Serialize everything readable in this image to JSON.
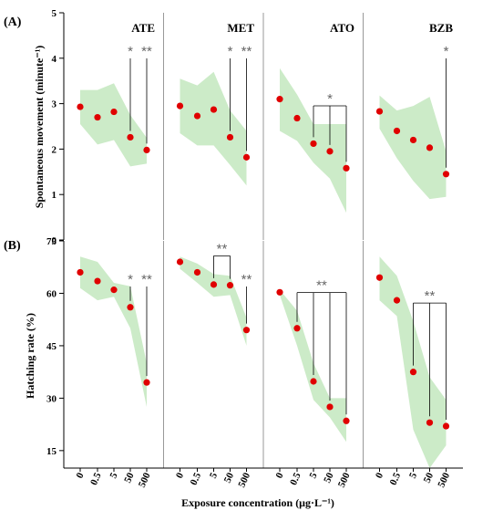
{
  "figure": {
    "xlabel": "Exposure concentration (μg·L⁻¹)",
    "x_ticks": [
      "0",
      "0.5",
      "5",
      "50",
      "500"
    ],
    "colors": {
      "point": "#e00000",
      "band": "#ccebc8",
      "sig_line": "#000000",
      "sig_text": "#666666",
      "divider": "#999999"
    }
  },
  "chart_data": [
    {
      "panel_label": "(A)",
      "type": "scatter",
      "ylabel": "Spontaneous movement (minute⁻¹)",
      "ylim": [
        0,
        5
      ],
      "y_ticks": [
        "0",
        "1",
        "2",
        "3",
        "4",
        "5"
      ],
      "categories": [
        "0",
        "0.5",
        "5",
        "50",
        "500"
      ],
      "groups": [
        {
          "name": "ATE",
          "values": [
            2.93,
            2.7,
            2.82,
            2.26,
            1.98
          ],
          "band_lower": [
            2.55,
            2.1,
            2.2,
            1.62,
            1.68
          ],
          "band_upper": [
            3.3,
            3.3,
            3.45,
            2.75,
            2.25
          ],
          "significance": [
            {
              "label": "*",
              "ref": 3
            },
            {
              "label": "**",
              "ref": 4
            }
          ]
        },
        {
          "name": "MET",
          "values": [
            2.95,
            2.73,
            2.87,
            2.26,
            1.82
          ],
          "band_lower": [
            2.35,
            2.08,
            2.08,
            1.65,
            1.2
          ],
          "band_upper": [
            3.55,
            3.4,
            3.7,
            2.85,
            2.4
          ],
          "significance": [
            {
              "label": "*",
              "ref": 3
            },
            {
              "label": "**",
              "ref": 4
            }
          ]
        },
        {
          "name": "ATO",
          "values": [
            3.1,
            2.68,
            2.12,
            1.95,
            1.58
          ],
          "band_lower": [
            2.4,
            2.18,
            1.7,
            1.35,
            0.6
          ],
          "band_upper": [
            3.78,
            3.2,
            2.55,
            2.55,
            2.55
          ],
          "significance": [
            {
              "label": "*",
              "refs": [
                2,
                3,
                4
              ],
              "bracket": true
            }
          ]
        },
        {
          "name": "BZB",
          "values": [
            2.83,
            2.4,
            2.2,
            2.03,
            1.45
          ],
          "band_lower": [
            2.45,
            1.8,
            1.3,
            0.9,
            0.95
          ],
          "band_upper": [
            3.18,
            2.85,
            2.95,
            3.15,
            1.95
          ],
          "significance": [
            {
              "label": "*",
              "ref": 4
            }
          ]
        }
      ]
    },
    {
      "panel_label": "(B)",
      "type": "scatter",
      "ylabel": "Hatching rate (%)",
      "ylim": [
        10,
        75
      ],
      "y_ticks": [
        "15",
        "30",
        "45",
        "60",
        "75"
      ],
      "y_tick_values": [
        15,
        30,
        45,
        60,
        75
      ],
      "categories": [
        "0",
        "0.5",
        "5",
        "50",
        "500"
      ],
      "groups": [
        {
          "name": "",
          "values": [
            66.0,
            63.5,
            61.0,
            56.0,
            34.5
          ],
          "band_lower": [
            61.5,
            58.0,
            59.0,
            50.0,
            27.5
          ],
          "band_upper": [
            70.5,
            69.0,
            63.0,
            62.0,
            40.0
          ],
          "significance": [
            {
              "label": "*",
              "ref": 3
            },
            {
              "label": "**",
              "ref": 4
            }
          ]
        },
        {
          "name": "",
          "values": [
            69.0,
            66.0,
            62.5,
            62.3,
            49.5
          ],
          "band_lower": [
            67.0,
            63.0,
            59.0,
            59.5,
            45.0
          ],
          "band_upper": [
            70.5,
            68.5,
            65.5,
            65.0,
            53.0
          ],
          "significance": [
            {
              "label": "**",
              "refs": [
                2,
                3
              ],
              "bracket": true
            },
            {
              "label": "**",
              "ref": 4
            }
          ]
        },
        {
          "name": "",
          "values": [
            60.3,
            50.0,
            34.8,
            27.5,
            23.5
          ],
          "band_lower": [
            59.5,
            45.0,
            29.5,
            24.5,
            17.5
          ],
          "band_upper": [
            61.0,
            55.0,
            40.0,
            30.0,
            30.0
          ],
          "significance": [
            {
              "label": "**",
              "refs": [
                1,
                2,
                3,
                4
              ],
              "bracket": true
            }
          ]
        },
        {
          "name": "",
          "values": [
            64.5,
            58.0,
            37.5,
            23.0,
            22.0
          ],
          "band_lower": [
            58.0,
            53.5,
            21.0,
            10.0,
            16.5
          ],
          "band_upper": [
            70.5,
            65.0,
            52.0,
            36.0,
            29.5
          ],
          "significance": [
            {
              "label": "**",
              "refs": [
                2,
                3,
                4
              ],
              "bracket": true
            }
          ]
        }
      ]
    }
  ]
}
